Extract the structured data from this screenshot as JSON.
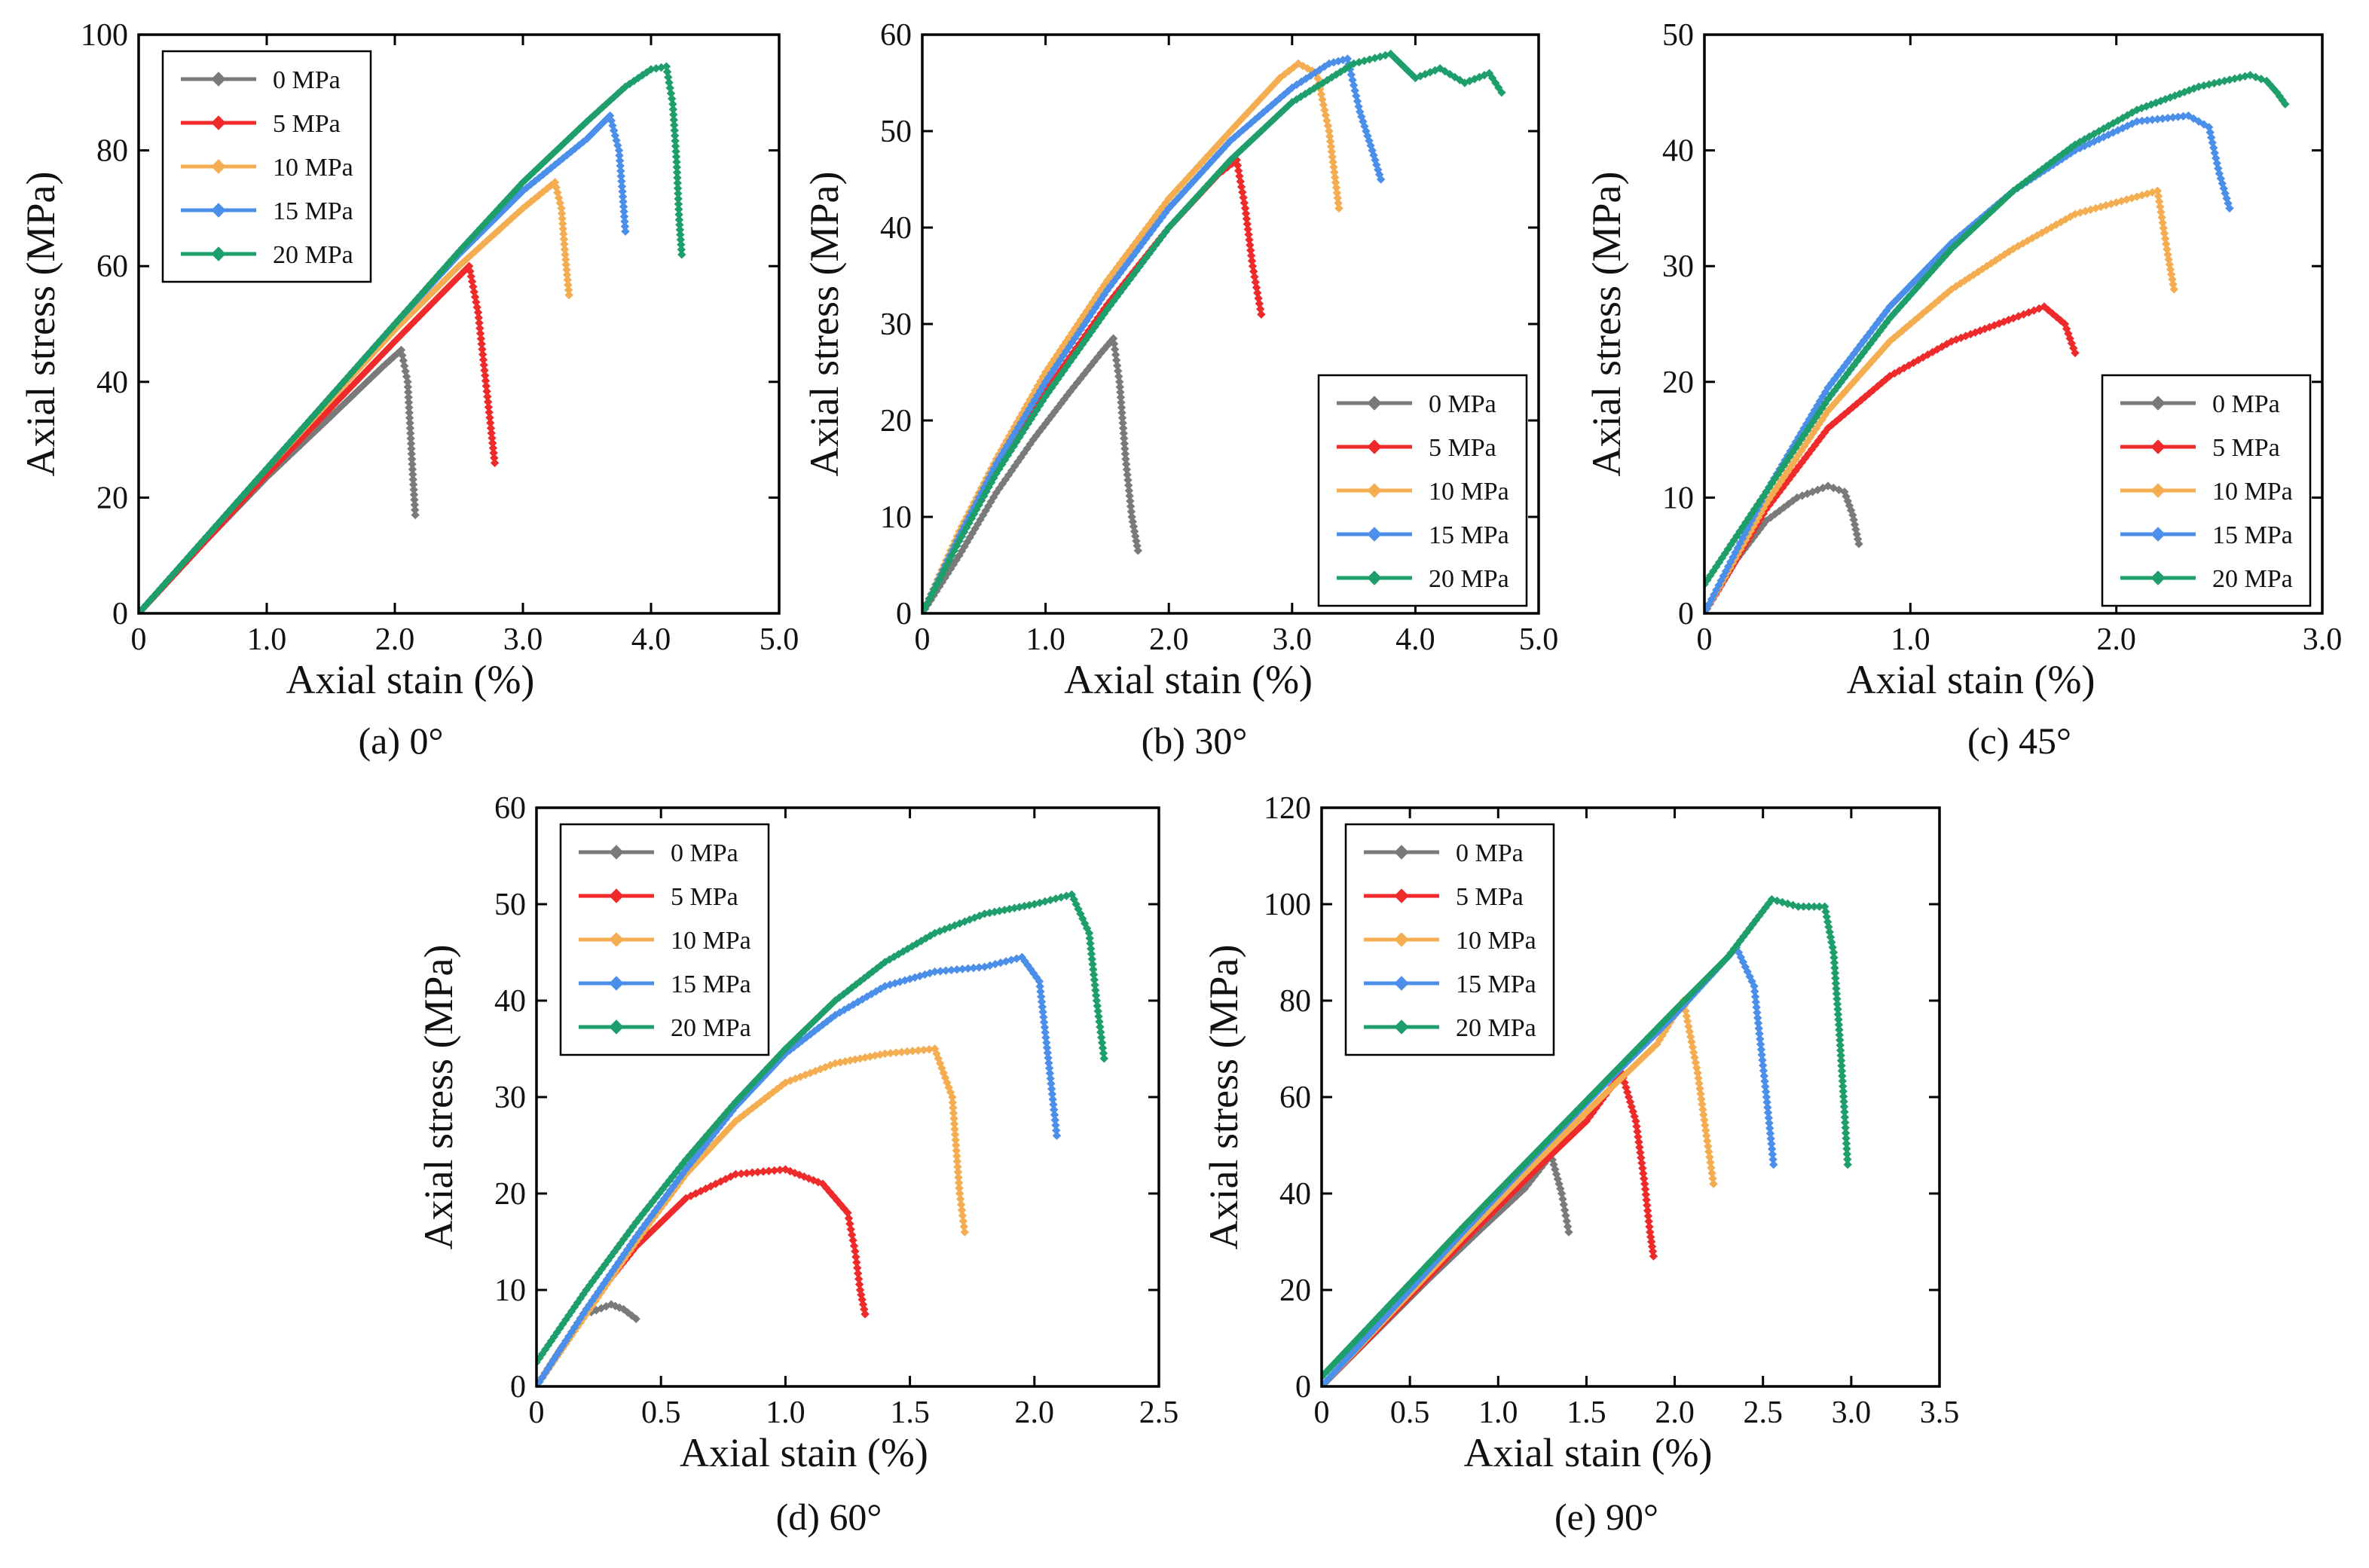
{
  "figure": {
    "series_colors": {
      "0 MPa": "#7a7a7a",
      "5 MPa": "#ee2a2a",
      "10 MPa": "#f4ad51",
      "15 MPa": "#4b8fea",
      "20 MPa": "#1e9e6a"
    }
  },
  "chart_data": [
    {
      "type": "line",
      "caption": "(a)  0°",
      "xlabel": "Axial stain (%)",
      "ylabel": "Axial stress (MPa)",
      "xlim": [
        0,
        5.0
      ],
      "ylim": [
        0,
        100
      ],
      "xticks": [
        0,
        1.0,
        2.0,
        3.0,
        4.0,
        5.0
      ],
      "xtick_labels": [
        "0",
        "1.0",
        "2.0",
        "3.0",
        "4.0",
        "5.0"
      ],
      "yticks": [
        0,
        20,
        40,
        60,
        80,
        100
      ],
      "ytick_labels": [
        "0",
        "20",
        "40",
        "60",
        "80",
        "100"
      ],
      "legend_position": "top-left",
      "series": [
        {
          "name": "0 MPa",
          "x": [
            0,
            0.5,
            1.0,
            1.5,
            1.9,
            2.05,
            2.1,
            2.12,
            2.14,
            2.16
          ],
          "y": [
            0,
            12,
            23.5,
            34,
            42.5,
            45.5,
            40,
            32,
            24,
            17
          ]
        },
        {
          "name": "5 MPa",
          "x": [
            0,
            0.5,
            1.0,
            1.5,
            2.0,
            2.4,
            2.58,
            2.65,
            2.7,
            2.75,
            2.78
          ],
          "y": [
            0,
            12,
            24,
            35.5,
            47,
            56,
            60,
            52,
            42,
            32,
            26
          ]
        },
        {
          "name": "10 MPa",
          "x": [
            0,
            0.5,
            1.0,
            1.5,
            2.0,
            2.5,
            3.0,
            3.25,
            3.3,
            3.33,
            3.36
          ],
          "y": [
            0,
            12.5,
            25,
            37,
            49,
            60,
            70,
            74.5,
            70,
            62,
            55
          ]
        },
        {
          "name": "15 MPa",
          "x": [
            0,
            0.5,
            1.0,
            1.5,
            2.0,
            2.5,
            3.0,
            3.5,
            3.68,
            3.75,
            3.78,
            3.8
          ],
          "y": [
            0,
            12.5,
            25,
            37.5,
            50,
            62,
            73,
            82,
            86,
            80,
            72,
            66
          ]
        },
        {
          "name": "20 MPa",
          "x": [
            0,
            0.5,
            1.0,
            1.5,
            2.0,
            2.5,
            3.0,
            3.5,
            3.8,
            4.0,
            4.12,
            4.17,
            4.2,
            4.22,
            4.24
          ],
          "y": [
            0,
            12.5,
            25,
            37.5,
            50,
            62.5,
            74.5,
            85,
            91,
            94,
            94.5,
            88,
            78,
            68,
            62
          ]
        }
      ]
    },
    {
      "type": "line",
      "caption": "(b) 30°",
      "xlabel": "Axial stain (%)",
      "ylabel": "Axial stress (MPa)",
      "xlim": [
        0,
        5.0
      ],
      "ylim": [
        0,
        60
      ],
      "xticks": [
        0,
        1.0,
        2.0,
        3.0,
        4.0,
        5.0
      ],
      "xtick_labels": [
        "0",
        "1.0",
        "2.0",
        "3.0",
        "4.0",
        "5.0"
      ],
      "yticks": [
        0,
        10,
        20,
        30,
        40,
        50,
        60
      ],
      "ytick_labels": [
        "0",
        "10",
        "20",
        "30",
        "40",
        "50",
        "60"
      ],
      "legend_position": "bottom-right",
      "series": [
        {
          "name": "0 MPa",
          "x": [
            0,
            0.3,
            0.6,
            0.9,
            1.2,
            1.45,
            1.55,
            1.6,
            1.65,
            1.7,
            1.75
          ],
          "y": [
            0,
            6,
            12.5,
            18,
            23,
            27,
            28.5,
            24,
            16,
            10,
            6.5
          ]
        },
        {
          "name": "5 MPa",
          "x": [
            0,
            0.3,
            0.6,
            1.0,
            1.5,
            2.0,
            2.4,
            2.55,
            2.62,
            2.68,
            2.75
          ],
          "y": [
            0,
            8,
            15,
            23,
            32,
            40,
            45.5,
            47,
            42,
            36,
            31
          ]
        },
        {
          "name": "10 MPa",
          "x": [
            0,
            0.3,
            0.6,
            1.0,
            1.5,
            2.0,
            2.5,
            2.9,
            3.05,
            3.2,
            3.3,
            3.38
          ],
          "y": [
            0,
            8.5,
            16,
            25,
            34.5,
            43,
            50,
            55.5,
            57,
            56,
            50,
            42
          ]
        },
        {
          "name": "15 MPa",
          "x": [
            0,
            0.3,
            0.6,
            1.0,
            1.5,
            2.0,
            2.5,
            3.0,
            3.3,
            3.45,
            3.55,
            3.65,
            3.72
          ],
          "y": [
            0,
            8,
            15.5,
            24,
            33.5,
            42,
            49,
            54.5,
            57,
            57.5,
            52,
            48,
            45
          ]
        },
        {
          "name": "20 MPa",
          "x": [
            0,
            0.3,
            0.6,
            1.0,
            1.5,
            2.0,
            2.5,
            3.0,
            3.5,
            3.8,
            4.0,
            4.2,
            4.4,
            4.6,
            4.7
          ],
          "y": [
            0,
            7.5,
            14.5,
            22.5,
            31.5,
            40,
            47,
            53,
            57,
            58,
            55.5,
            56.5,
            55,
            56,
            54
          ]
        }
      ]
    },
    {
      "type": "line",
      "caption": "(c) 45°",
      "xlabel": "Axial stain (%)",
      "ylabel": "Axial stress (MPa)",
      "xlim": [
        0,
        3.0
      ],
      "ylim": [
        0,
        50
      ],
      "xticks": [
        0,
        1.0,
        2.0,
        3.0
      ],
      "xtick_labels": [
        "0",
        "1.0",
        "2.0",
        "3.0"
      ],
      "yticks": [
        0,
        10,
        20,
        30,
        40,
        50
      ],
      "ytick_labels": [
        "0",
        "10",
        "20",
        "30",
        "40",
        "50"
      ],
      "legend_position": "bottom-right",
      "series": [
        {
          "name": "0 MPa",
          "x": [
            0,
            0.15,
            0.3,
            0.45,
            0.6,
            0.68,
            0.72,
            0.75
          ],
          "y": [
            0,
            4.5,
            8,
            10,
            11,
            10.5,
            8.5,
            6
          ]
        },
        {
          "name": "5 MPa",
          "x": [
            0,
            0.3,
            0.6,
            0.9,
            1.2,
            1.5,
            1.65,
            1.75,
            1.8
          ],
          "y": [
            0,
            9,
            16,
            20.5,
            23.5,
            25.5,
            26.5,
            25,
            22.5
          ]
        },
        {
          "name": "10 MPa",
          "x": [
            0,
            0.3,
            0.6,
            0.9,
            1.2,
            1.5,
            1.8,
            2.1,
            2.2,
            2.25,
            2.28
          ],
          "y": [
            0,
            9.5,
            17.5,
            23.5,
            28,
            31.5,
            34.5,
            36,
            36.5,
            31,
            28
          ]
        },
        {
          "name": "15 MPa",
          "x": [
            0,
            0.3,
            0.6,
            0.9,
            1.2,
            1.5,
            1.8,
            2.1,
            2.35,
            2.45,
            2.5,
            2.55
          ],
          "y": [
            0,
            10.5,
            19.5,
            26.5,
            32,
            36.5,
            40,
            42.5,
            43,
            42,
            38,
            35
          ]
        },
        {
          "name": "20 MPa",
          "x": [
            0,
            0.3,
            0.6,
            0.9,
            1.2,
            1.5,
            1.8,
            2.1,
            2.4,
            2.65,
            2.73,
            2.78,
            2.82
          ],
          "y": [
            2.5,
            10.5,
            18.5,
            25.5,
            31.5,
            36.5,
            40.5,
            43.5,
            45.5,
            46.5,
            46,
            45,
            44
          ]
        }
      ]
    },
    {
      "type": "line",
      "caption": "(d) 60°",
      "xlabel": "Axial stain (%)",
      "ylabel": "Axial stress (MPa)",
      "xlim": [
        0,
        2.5
      ],
      "ylim": [
        0,
        60
      ],
      "xticks": [
        0,
        0.5,
        1.0,
        1.5,
        2.0,
        2.5
      ],
      "xtick_labels": [
        "0",
        "0.5",
        "1.0",
        "1.5",
        "2.0",
        "2.5"
      ],
      "yticks": [
        0,
        10,
        20,
        30,
        40,
        50,
        60
      ],
      "ytick_labels": [
        "0",
        "10",
        "20",
        "30",
        "40",
        "50",
        "60"
      ],
      "legend_position": "top-left",
      "series": [
        {
          "name": "0 MPa",
          "x": [
            0,
            0.1,
            0.2,
            0.3,
            0.35,
            0.4
          ],
          "y": [
            0,
            4,
            7.5,
            8.5,
            8,
            7
          ]
        },
        {
          "name": "5 MPa",
          "x": [
            0,
            0.2,
            0.4,
            0.6,
            0.8,
            1.0,
            1.15,
            1.25,
            1.28,
            1.3,
            1.32
          ],
          "y": [
            0,
            8,
            14.5,
            19.5,
            22,
            22.5,
            21,
            18,
            14,
            10,
            7.5
          ]
        },
        {
          "name": "10 MPa",
          "x": [
            0,
            0.2,
            0.4,
            0.6,
            0.8,
            1.0,
            1.2,
            1.4,
            1.6,
            1.67,
            1.7,
            1.72
          ],
          "y": [
            0,
            7.5,
            15,
            22,
            27.5,
            31.5,
            33.5,
            34.5,
            35,
            30,
            20,
            16
          ]
        },
        {
          "name": "15 MPa",
          "x": [
            0,
            0.2,
            0.4,
            0.6,
            0.8,
            1.0,
            1.2,
            1.4,
            1.6,
            1.8,
            1.95,
            2.02,
            2.06,
            2.09
          ],
          "y": [
            0,
            8,
            15.5,
            22.5,
            29,
            34.5,
            38.5,
            41.5,
            43,
            43.5,
            44.5,
            42,
            33,
            26
          ]
        },
        {
          "name": "20 MPa",
          "x": [
            0,
            0.2,
            0.4,
            0.6,
            0.8,
            1.0,
            1.2,
            1.4,
            1.6,
            1.8,
            2.0,
            2.15,
            2.22,
            2.25,
            2.28
          ],
          "y": [
            2.5,
            10,
            17,
            23.5,
            29.5,
            35,
            40,
            44,
            47,
            49,
            50,
            51,
            47,
            40,
            34
          ]
        }
      ]
    },
    {
      "type": "line",
      "caption": "(e) 90°",
      "xlabel": "Axial stain (%)",
      "ylabel": "Axial stress (MPa)",
      "xlim": [
        0,
        3.5
      ],
      "ylim": [
        0,
        120
      ],
      "xticks": [
        0,
        0.5,
        1.0,
        1.5,
        2.0,
        2.5,
        3.0,
        3.5
      ],
      "xtick_labels": [
        "0",
        "0.5",
        "1.0",
        "1.5",
        "2.0",
        "2.5",
        "3.0",
        "3.5"
      ],
      "yticks": [
        0,
        20,
        40,
        60,
        80,
        100,
        120
      ],
      "ytick_labels": [
        "0",
        "20",
        "40",
        "60",
        "80",
        "100",
        "120"
      ],
      "legend_position": "top-left",
      "series": [
        {
          "name": "0 MPa",
          "x": [
            0,
            0.3,
            0.6,
            0.9,
            1.15,
            1.3,
            1.36,
            1.4
          ],
          "y": [
            0,
            11,
            22,
            32.5,
            41,
            48,
            40,
            32
          ]
        },
        {
          "name": "5 MPa",
          "x": [
            0,
            0.4,
            0.8,
            1.2,
            1.5,
            1.7,
            1.78,
            1.83,
            1.86,
            1.88
          ],
          "y": [
            0,
            15,
            30,
            44.5,
            55,
            65,
            55,
            42,
            32,
            27
          ]
        },
        {
          "name": "10 MPa",
          "x": [
            0,
            0.4,
            0.8,
            1.2,
            1.6,
            1.9,
            2.05,
            2.13,
            2.18,
            2.22
          ],
          "y": [
            0,
            15.5,
            31,
            46,
            60.5,
            71,
            80,
            65,
            52,
            42
          ]
        },
        {
          "name": "15 MPa",
          "x": [
            0,
            0.4,
            0.8,
            1.2,
            1.6,
            2.0,
            2.35,
            2.45,
            2.52,
            2.56
          ],
          "y": [
            0,
            16,
            32,
            47.5,
            62.5,
            77,
            91,
            83,
            60,
            46
          ]
        },
        {
          "name": "20 MPa",
          "x": [
            0,
            0.4,
            0.8,
            1.2,
            1.6,
            2.0,
            2.3,
            2.55,
            2.7,
            2.85,
            2.9,
            2.93,
            2.96,
            2.98
          ],
          "y": [
            2,
            17.5,
            33,
            48,
            63,
            78,
            89,
            101,
            99.5,
            99.5,
            90,
            75,
            58,
            46
          ]
        }
      ]
    }
  ]
}
